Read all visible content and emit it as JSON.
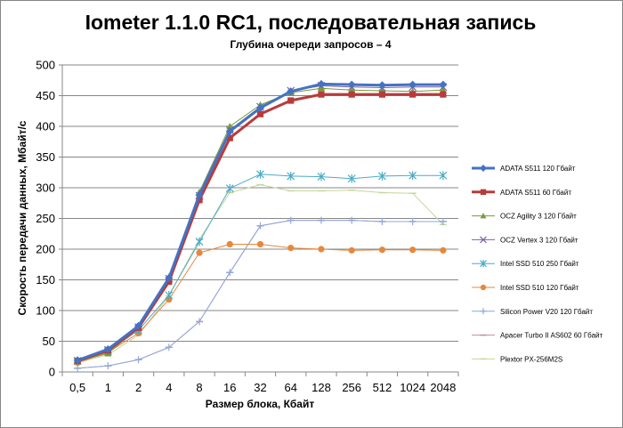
{
  "chart_data": {
    "type": "line",
    "title": "Iometer 1.1.0 RC1, последовательная запись",
    "subtitle": "Глубина очереди запросов – 4",
    "xlabel": "Размер блока, Кбайт",
    "ylabel": "Скорость передачи данных, Мбайт/с",
    "categories": [
      "0,5",
      "1",
      "2",
      "4",
      "8",
      "16",
      "32",
      "64",
      "128",
      "256",
      "512",
      "1024",
      "2048"
    ],
    "ylim": [
      0,
      500
    ],
    "yticks": [
      "0",
      "50",
      "100",
      "150",
      "200",
      "250",
      "300",
      "350",
      "400",
      "450",
      "500"
    ],
    "grid": "horizontal",
    "legend_position": "right",
    "series": [
      {
        "name": "ADATA  S511 120 Гбайт",
        "color": "#4472C4",
        "marker": "diamond",
        "width": 3,
        "values": [
          19,
          37,
          75,
          153,
          288,
          392,
          430,
          457,
          469,
          468,
          467,
          468,
          468
        ]
      },
      {
        "name": "ADATA  S511 60 Гбайт",
        "color": "#B83B3B",
        "marker": "square",
        "width": 3,
        "values": [
          18,
          35,
          72,
          147,
          280,
          381,
          420,
          442,
          452,
          452,
          452,
          452,
          452
        ]
      },
      {
        "name": "OCZ Agility  3 120 Гбайт",
        "color": "#7A9A3A",
        "marker": "triangle",
        "width": 1,
        "values": [
          17,
          30,
          72,
          155,
          293,
          400,
          435,
          455,
          462,
          459,
          458,
          457,
          459
        ]
      },
      {
        "name": "OCZ Vertex  3 120 Гбайт",
        "color": "#7E62A6",
        "marker": "x",
        "width": 1,
        "values": [
          18,
          36,
          73,
          152,
          287,
          394,
          432,
          458,
          466,
          464,
          463,
          464,
          464
        ]
      },
      {
        "name": "Intel  SSD 510 250 Гбайт",
        "color": "#4BACC6",
        "marker": "star",
        "width": 1,
        "values": [
          18,
          33,
          68,
          125,
          212,
          299,
          322,
          319,
          318,
          315,
          319,
          320,
          320
        ]
      },
      {
        "name": "Intel  SSD 510 120 Гбайт",
        "color": "#E8873A",
        "marker": "circle",
        "width": 1,
        "values": [
          15,
          32,
          63,
          118,
          194,
          208,
          208,
          202,
          200,
          198,
          199,
          199,
          198
        ]
      },
      {
        "name": "Silicon Power  V20 120 Гбайт",
        "color": "#8EA9DB",
        "marker": "plus",
        "width": 1,
        "values": [
          6,
          10,
          20,
          40,
          82,
          162,
          238,
          247,
          247,
          247,
          245,
          245,
          245
        ]
      },
      {
        "name": "Apacer Turbo II AS602 60 Гбайт",
        "color": "#C8899A",
        "marker": "dash",
        "width": 1,
        "values": [
          6,
          10,
          20,
          40,
          82,
          162,
          238,
          247,
          247,
          247,
          245,
          245,
          245
        ]
      },
      {
        "name": "Plextor PX-256M2S",
        "color": "#C4D79B",
        "marker": "dash",
        "width": 1,
        "values": [
          15,
          28,
          60,
          124,
          216,
          292,
          305,
          295,
          295,
          296,
          292,
          291,
          240
        ]
      }
    ]
  }
}
